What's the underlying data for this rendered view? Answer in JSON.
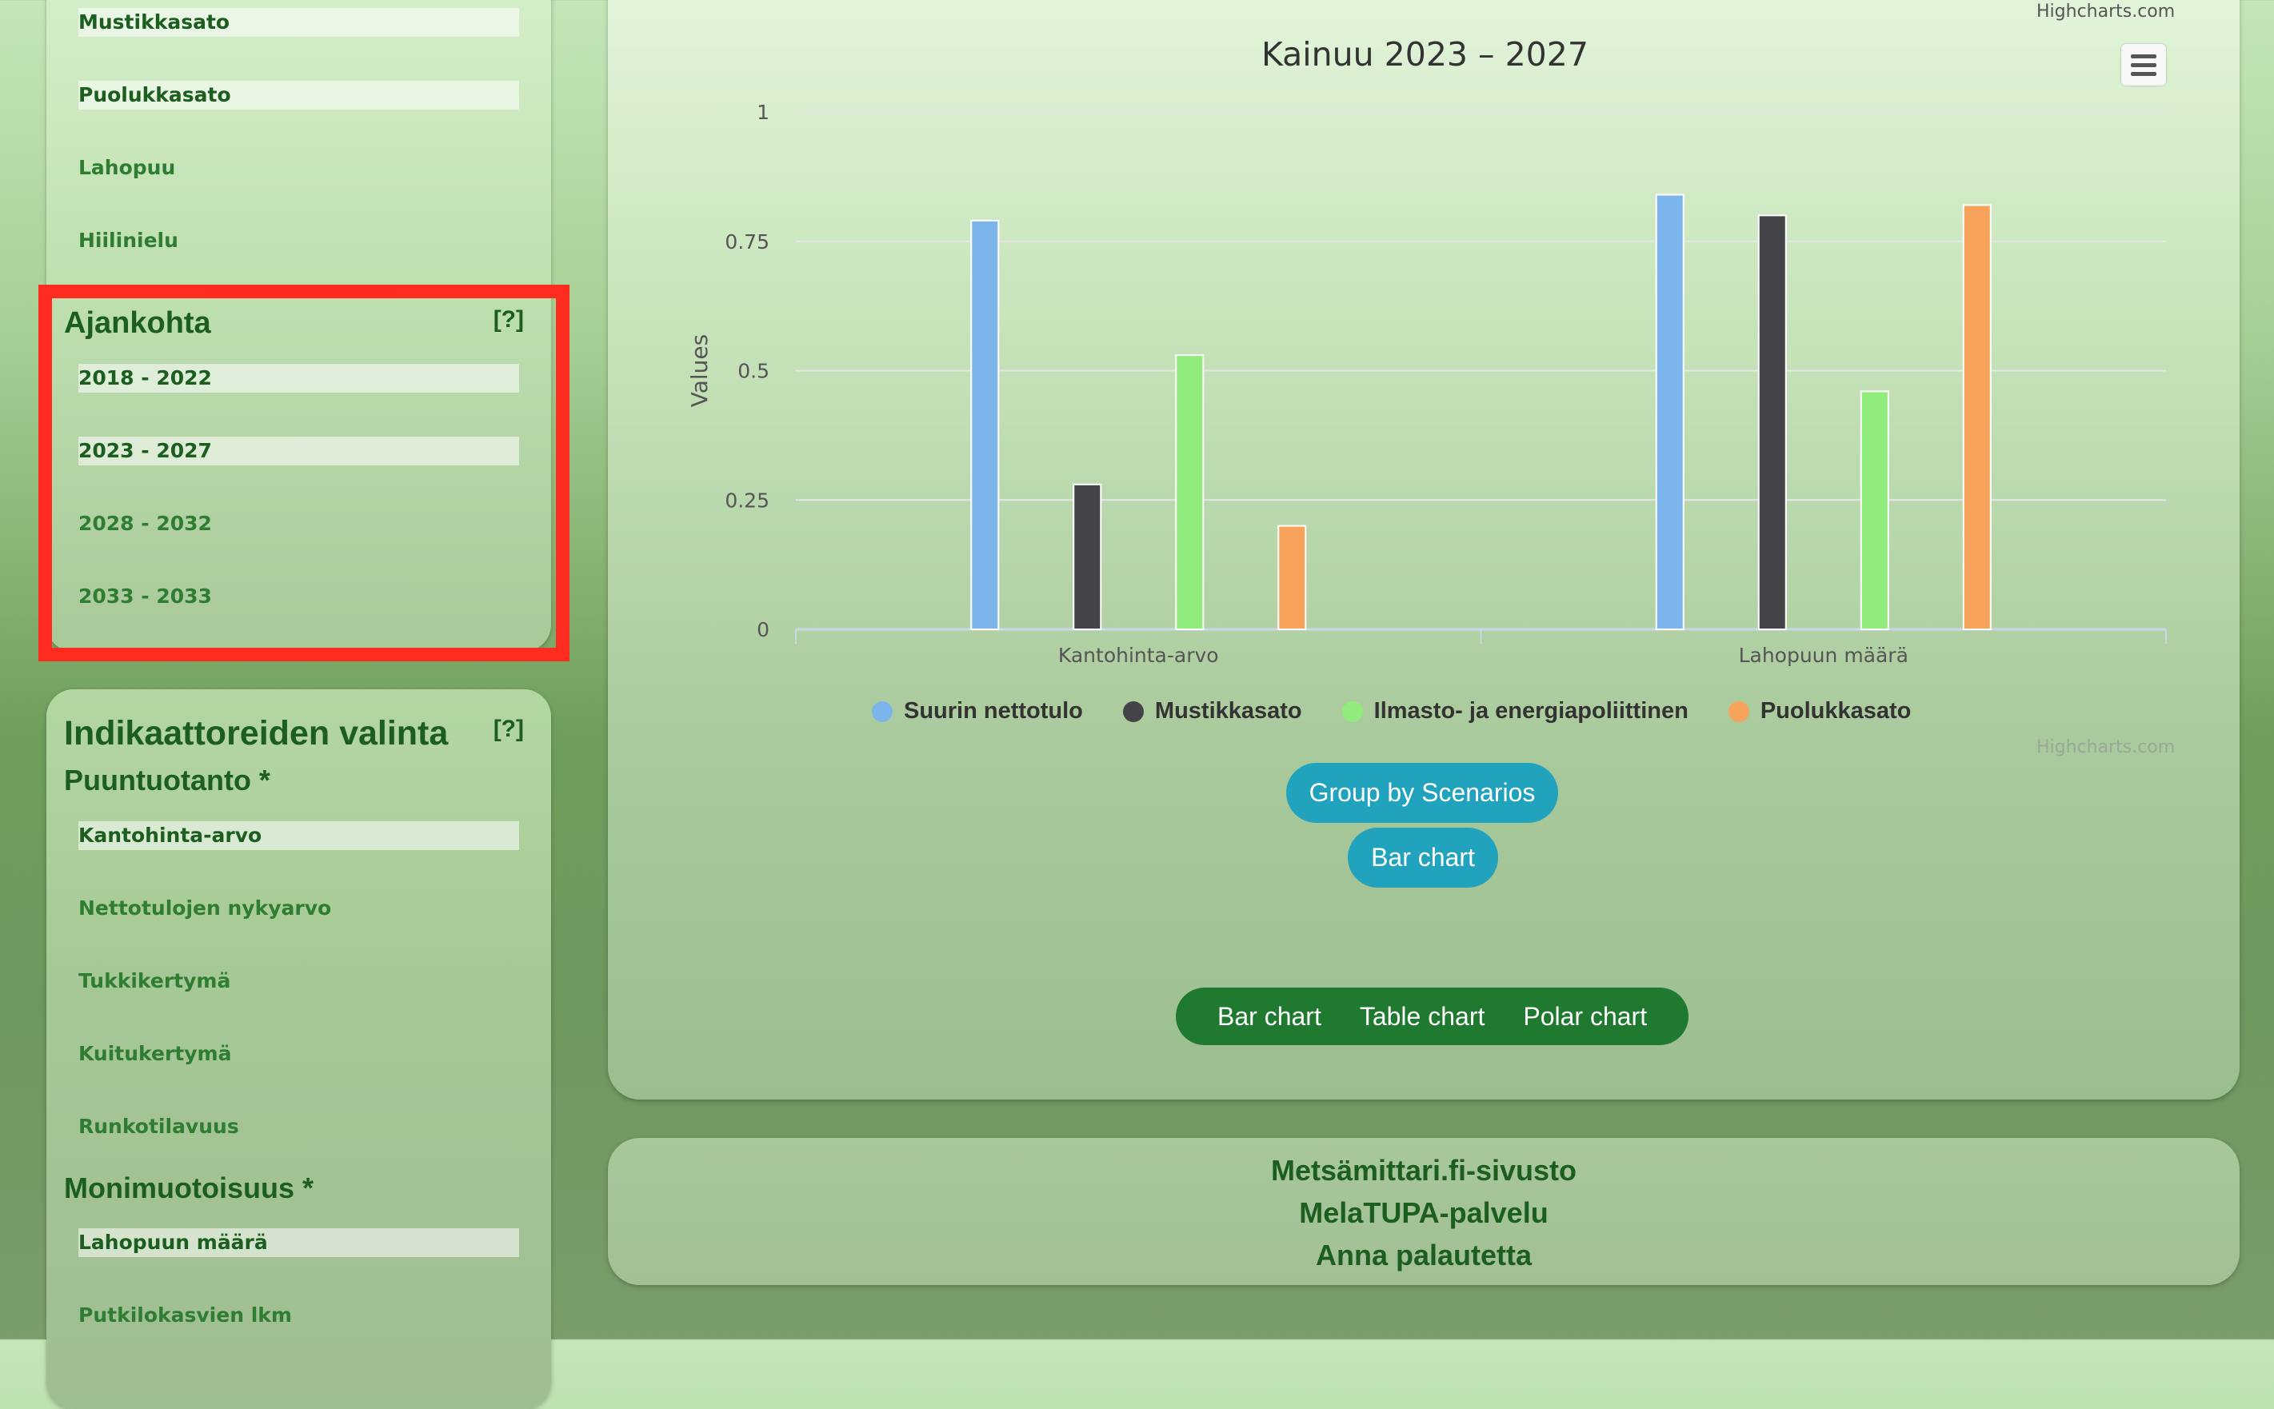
{
  "top_panel": {
    "options": [
      {
        "label": "Mustikkasato",
        "selected": true
      },
      {
        "label": "Puolukkasato",
        "selected": true
      },
      {
        "label": "Lahopuu",
        "selected": false
      },
      {
        "label": "Hiilinielu",
        "selected": false
      }
    ]
  },
  "time_panel": {
    "title": "Ajankohta",
    "help": "[?]",
    "options": [
      {
        "label": "2018 - 2022",
        "selected": true
      },
      {
        "label": "2023 - 2027",
        "selected": true
      },
      {
        "label": "2028 - 2032",
        "selected": false
      },
      {
        "label": "2033 - 2033",
        "selected": false
      }
    ]
  },
  "indicator_panel": {
    "title": "Indikaattoreiden valinta",
    "help": "[?]",
    "section1": "Puuntuotanto *",
    "section1_options": [
      {
        "label": "Kantohinta-arvo",
        "selected": true
      },
      {
        "label": "Nettotulojen nykyarvo",
        "selected": false
      },
      {
        "label": "Tukkikertymä",
        "selected": false
      },
      {
        "label": "Kuitukertymä",
        "selected": false
      },
      {
        "label": "Runkotilavuus",
        "selected": false
      }
    ],
    "section2": "Monimuotoisuus *",
    "section2_options": [
      {
        "label": "Lahopuun määrä",
        "selected": true
      },
      {
        "label": "Putkilokasvien lkm",
        "selected": false
      }
    ]
  },
  "chart": {
    "credits_top": "Highcharts.com",
    "credits_bottom": "Highcharts.com",
    "group_button": "Group by Scenarios",
    "bar_button": "Bar chart",
    "chart_types": [
      "Bar chart",
      "Table chart",
      "Polar chart"
    ]
  },
  "chart_data": {
    "type": "bar",
    "title": "Kainuu 2023 – 2027",
    "ylabel": "Values",
    "xlabel": "",
    "ylim": [
      0,
      1
    ],
    "yticks": [
      "0",
      "0.25",
      "0.5",
      "0.75",
      "1"
    ],
    "categories": [
      "Kantohinta-arvo",
      "Lahopuun määrä"
    ],
    "series": [
      {
        "name": "Suurin nettotulo",
        "color": "#7cb5ec",
        "values": [
          0.79,
          0.84
        ]
      },
      {
        "name": "Mustikkasato",
        "color": "#434348",
        "values": [
          0.28,
          0.8
        ]
      },
      {
        "name": "Ilmasto- ja energiapoliittinen",
        "color": "#90ed7d",
        "values": [
          0.53,
          0.46
        ]
      },
      {
        "name": "Puolukkasato",
        "color": "#f7a35c",
        "values": [
          0.2,
          0.82
        ]
      }
    ],
    "grid": true,
    "legend": "bottom-center"
  },
  "footer": {
    "links": [
      "Metsämittari.fi-sivusto",
      "MelaTUPA-palvelu",
      "Anna palautetta"
    ]
  }
}
